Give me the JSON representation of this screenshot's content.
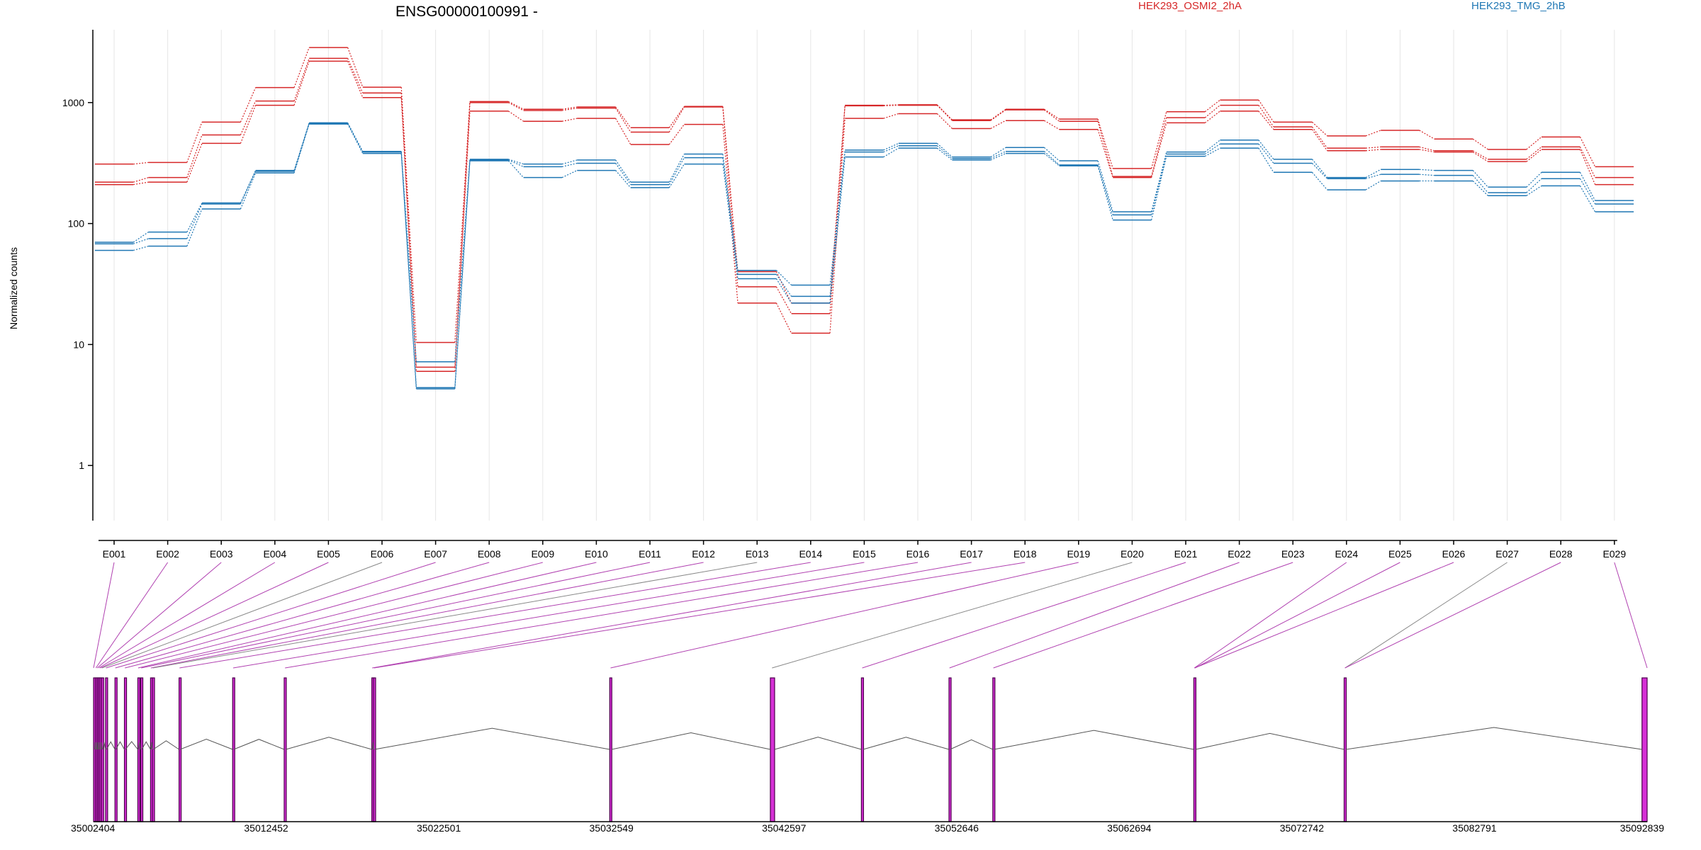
{
  "chart_data": {
    "type": "line",
    "title": "ENSG00000100991 -",
    "ylabel": "Normalized counts",
    "y_scale": "log",
    "ylim": [
      0.35,
      4000
    ],
    "y_ticks": [
      1,
      10,
      100,
      1000
    ],
    "y_tick_labels": [
      "1",
      "10",
      "100",
      "1000"
    ],
    "vertical_grid": true,
    "legend_position": "top-right",
    "categories": [
      "E001",
      "E002",
      "E003",
      "E004",
      "E005",
      "E006",
      "E007",
      "E008",
      "E009",
      "E010",
      "E011",
      "E012",
      "E013",
      "E014",
      "E015",
      "E016",
      "E017",
      "E018",
      "E019",
      "E020",
      "E021",
      "E022",
      "E023",
      "E024",
      "E025",
      "E026",
      "E027",
      "E028",
      "E029"
    ],
    "series": [
      {
        "name": "HEK293_OSMI2_2hA",
        "color": "#d62728",
        "replicates": [
          [
            310,
            320,
            690,
            1330,
            2850,
            1340,
            10.4,
            1020,
            880,
            920,
            620,
            930,
            40,
            22,
            950,
            960,
            720,
            880,
            730,
            285,
            840,
            1050,
            690,
            530,
            590,
            500,
            410,
            520,
            295
          ],
          [
            220,
            240,
            540,
            1030,
            2320,
            1200,
            6.5,
            1000,
            860,
            900,
            570,
            920,
            30,
            18,
            940,
            950,
            710,
            870,
            700,
            245,
            750,
            950,
            630,
            420,
            430,
            400,
            340,
            430,
            240
          ],
          [
            210,
            220,
            460,
            950,
            2200,
            1100,
            6.0,
            850,
            700,
            740,
            450,
            660,
            22,
            12.4,
            740,
            810,
            610,
            710,
            600,
            240,
            680,
            850,
            600,
            400,
            410,
            390,
            325,
            410,
            210
          ]
        ]
      },
      {
        "name": "HEK293_TMG_2hB",
        "color": "#1f77b4",
        "replicates": [
          [
            70,
            85,
            148,
            275,
            680,
            395,
            7.2,
            340,
            310,
            335,
            220,
            375,
            41,
            31,
            405,
            460,
            355,
            425,
            330,
            125,
            390,
            490,
            340,
            240,
            280,
            275,
            200,
            265,
            155
          ],
          [
            68,
            75,
            145,
            270,
            675,
            390,
            4.4,
            335,
            295,
            315,
            210,
            350,
            38,
            25,
            390,
            440,
            345,
            395,
            305,
            118,
            375,
            455,
            315,
            235,
            255,
            250,
            180,
            235,
            145
          ],
          [
            60,
            65,
            132,
            262,
            665,
            380,
            4.3,
            330,
            240,
            275,
            198,
            310,
            35,
            22,
            355,
            420,
            335,
            380,
            300,
            107,
            360,
            420,
            265,
            190,
            225,
            225,
            170,
            205,
            125
          ]
        ]
      }
    ],
    "gene_model": {
      "coords": [
        35002404,
        35012452,
        35022501,
        35032549,
        35042597,
        35052646,
        35062694,
        35072742,
        35082791,
        35092839
      ],
      "exons": [
        {
          "start": 35002404,
          "end": 35002474
        },
        {
          "start": 35002510,
          "end": 35002570
        },
        {
          "start": 35002600,
          "end": 35002640
        },
        {
          "start": 35002680,
          "end": 35002740
        },
        {
          "start": 35002770,
          "end": 35002840
        },
        {
          "start": 35002870,
          "end": 35002920
        },
        {
          "start": 35003100,
          "end": 35003160
        },
        {
          "start": 35003650,
          "end": 35003700
        },
        {
          "start": 35004200,
          "end": 35004260
        },
        {
          "start": 35004980,
          "end": 35005020
        },
        {
          "start": 35005150,
          "end": 35005210
        },
        {
          "start": 35005720,
          "end": 35005760
        },
        {
          "start": 35005830,
          "end": 35005880
        },
        {
          "start": 35007380,
          "end": 35007440
        },
        {
          "start": 35010500,
          "end": 35010560
        },
        {
          "start": 35013500,
          "end": 35013600
        },
        {
          "start": 35018600,
          "end": 35018650
        },
        {
          "start": 35018700,
          "end": 35018760
        },
        {
          "start": 35032450,
          "end": 35032560
        },
        {
          "start": 35041800,
          "end": 35042050
        },
        {
          "start": 35047100,
          "end": 35047200
        },
        {
          "start": 35052200,
          "end": 35052260
        },
        {
          "start": 35054750,
          "end": 35054820
        },
        {
          "start": 35066450,
          "end": 35066550
        },
        {
          "start": 35075200,
          "end": 35075300
        },
        {
          "start": 35092540,
          "end": 35092839
        }
      ],
      "bin_anchors": [
        35002404,
        35002540,
        35002620,
        35002710,
        35002800,
        35002895,
        35003130,
        35003670,
        35004230,
        35005000,
        35005180,
        35005740,
        35005855,
        35007410,
        35010530,
        35013550,
        35018625,
        35018730,
        35032500,
        35041900,
        35047150,
        35052230,
        35054785,
        35066480,
        35066520,
        35066500,
        35075250,
        35075250,
        35092839
      ]
    }
  }
}
